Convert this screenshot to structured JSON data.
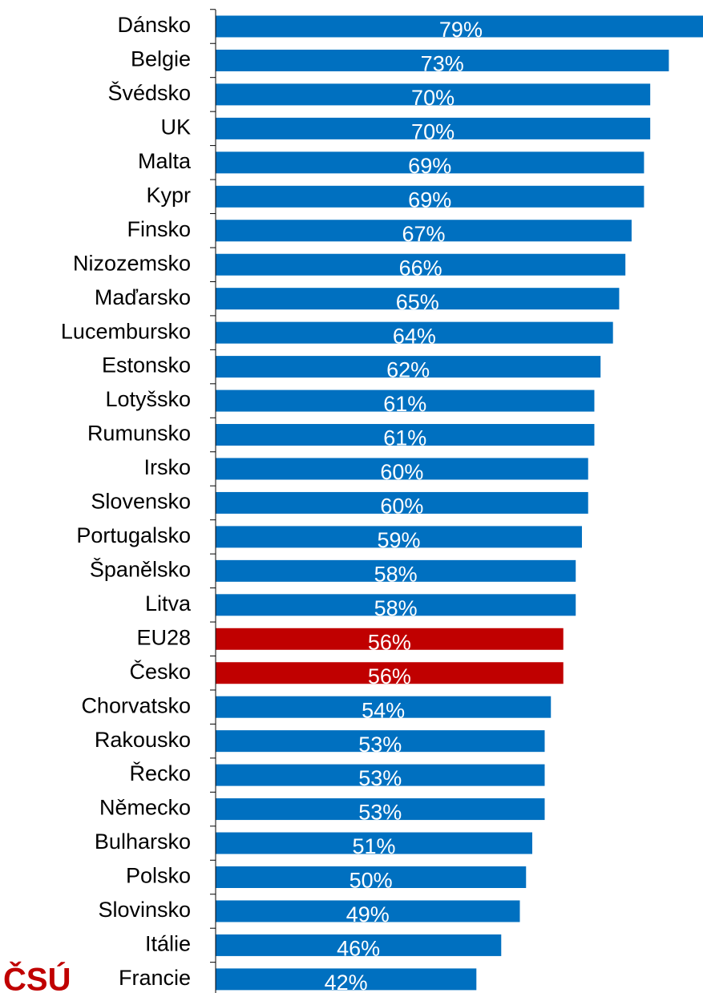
{
  "chart_data": {
    "type": "barh",
    "logo": "ČSÚ",
    "categories": [
      "Dánsko",
      "Belgie",
      "Švédsko",
      "UK",
      "Malta",
      "Kypr",
      "Finsko",
      "Nizozemsko",
      "Maďarsko",
      "Lucembursko",
      "Estonsko",
      "Lotyšsko",
      "Rumunsko",
      "Irsko",
      "Slovensko",
      "Portugalsko",
      "Španělsko",
      "Litva",
      "EU28",
      "Česko",
      "Chorvatsko",
      "Rakousko",
      "Řecko",
      "Německo",
      "Bulharsko",
      "Polsko",
      "Slovinsko",
      "Itálie",
      "Francie"
    ],
    "values": [
      79,
      73,
      70,
      70,
      69,
      69,
      67,
      66,
      65,
      64,
      62,
      61,
      61,
      60,
      60,
      59,
      58,
      58,
      56,
      56,
      54,
      53,
      53,
      53,
      51,
      50,
      49,
      46,
      42
    ],
    "value_labels": [
      "79%",
      "73%",
      "70%",
      "70%",
      "69%",
      "69%",
      "67%",
      "66%",
      "65%",
      "64%",
      "62%",
      "61%",
      "61%",
      "60%",
      "60%",
      "59%",
      "58%",
      "58%",
      "56%",
      "56%",
      "54%",
      "53%",
      "53%",
      "53%",
      "51%",
      "50%",
      "49%",
      "46%",
      "42%"
    ],
    "colors": [
      "#0070c0",
      "#0070c0",
      "#0070c0",
      "#0070c0",
      "#0070c0",
      "#0070c0",
      "#0070c0",
      "#0070c0",
      "#0070c0",
      "#0070c0",
      "#0070c0",
      "#0070c0",
      "#0070c0",
      "#0070c0",
      "#0070c0",
      "#0070c0",
      "#0070c0",
      "#0070c0",
      "#c00000",
      "#c00000",
      "#0070c0",
      "#0070c0",
      "#0070c0",
      "#0070c0",
      "#0070c0",
      "#0070c0",
      "#0070c0",
      "#0070c0",
      "#0070c0"
    ],
    "xlim": [
      0,
      78.5
    ]
  }
}
